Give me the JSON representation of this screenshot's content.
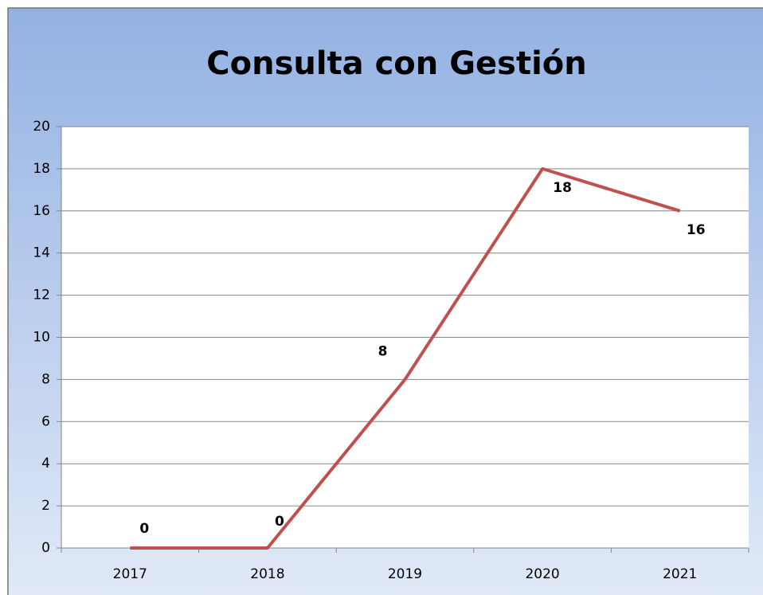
{
  "chart_data": {
    "type": "line",
    "title": "Consulta con Gestión",
    "categories": [
      "2017",
      "2018",
      "2019",
      "2020",
      "2021"
    ],
    "values": [
      0,
      0,
      8,
      18,
      16
    ],
    "color": "#c0504d",
    "ylim": [
      0,
      20
    ],
    "yticks": [
      0,
      2,
      4,
      6,
      8,
      10,
      12,
      14,
      16,
      18,
      20
    ],
    "grid": true
  }
}
